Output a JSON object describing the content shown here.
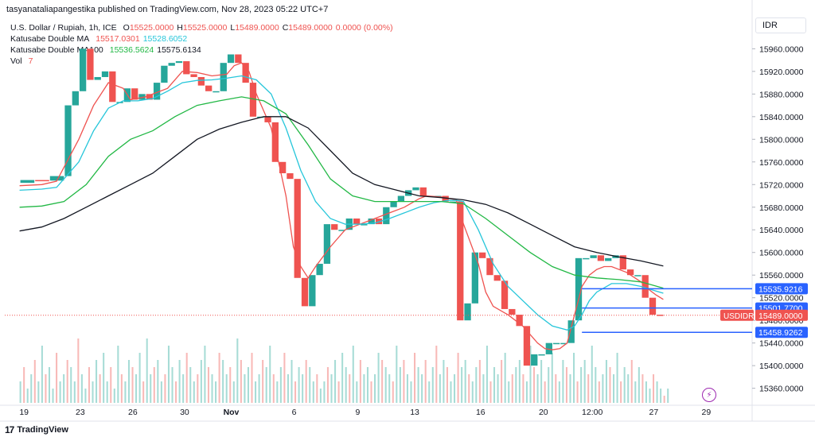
{
  "publisher": "tasyanataliapangestika published on TradingView.com, Nov 28, 2023 05:22 UTC+7",
  "legend": {
    "symbol": "U.S. Dollar / Rupiah, 1h, ICE",
    "o_label": "O",
    "o": "15525.0000",
    "h_label": "H",
    "h": "15525.0000",
    "l_label": "L",
    "l": "15489.0000",
    "c_label": "C",
    "c": "15489.0000",
    "change": "0.0000 (0.00%)",
    "ma1_name": "Katusabe Double MA",
    "ma1_a": "15517.0301",
    "ma1_b": "15528.6052",
    "ma2_name": "Katusabe Double MA100",
    "ma2_a": "15536.5624",
    "ma2_b": "15575.6134",
    "vol_name": "Vol",
    "vol": "7"
  },
  "currency": "IDR",
  "footer": {
    "brand": "TradingView",
    "logo": "17"
  },
  "colors": {
    "up": "#26a69a",
    "down": "#ef5350",
    "ma_fast": "#ef5350",
    "ma_mid": "#26c6da",
    "ma_green": "#22b845",
    "ma_long": "#131722",
    "marker": "#2962ff"
  },
  "chart_data": {
    "type": "line",
    "title": "U.S. Dollar / Rupiah, 1h, ICE",
    "ylim": [
      15330,
      15990
    ],
    "y_ticks": [
      "15960.0000",
      "15920.0000",
      "15880.0000",
      "15840.0000",
      "15800.0000",
      "15760.0000",
      "15720.0000",
      "15680.0000",
      "15640.0000",
      "15600.0000",
      "15560.0000",
      "15520.0000",
      "15480.0000",
      "15440.0000",
      "15400.0000",
      "15360.0000"
    ],
    "y_tick_values": [
      15960,
      15920,
      15880,
      15840,
      15800,
      15760,
      15720,
      15680,
      15640,
      15600,
      15560,
      15520,
      15480,
      15440,
      15400,
      15360
    ],
    "x_ticks": [
      "19",
      "23",
      "26",
      "30",
      "Nov",
      "6",
      "9",
      "13",
      "16",
      "20",
      "12:00",
      "27",
      "29"
    ],
    "x_tick_positions": [
      0.6,
      8.2,
      15.3,
      22.3,
      28.6,
      37.1,
      45.7,
      53.4,
      62.3,
      70.8,
      77.4,
      85.7,
      92.8
    ],
    "xlim": [
      -2,
      99
    ],
    "series": [
      {
        "name": "Price",
        "x": [
          0,
          2,
          4,
          6,
          7,
          8,
          9,
          10,
          11,
          12,
          13,
          14,
          15,
          16,
          17,
          18,
          19,
          20,
          21,
          22,
          23,
          24,
          25,
          26,
          27,
          28,
          29,
          30,
          31,
          32,
          33,
          34,
          35,
          36,
          37,
          38,
          39,
          40,
          41,
          42,
          43,
          44,
          45,
          46,
          47,
          48,
          49,
          50,
          51,
          52,
          53,
          54,
          55,
          56,
          57,
          58,
          59,
          60,
          61,
          62,
          63,
          64,
          65,
          66,
          67,
          68,
          69,
          70,
          71,
          72,
          73,
          74,
          75,
          76,
          77,
          78,
          79,
          80,
          81,
          82,
          83,
          84,
          85,
          86,
          87
        ],
        "values": [
          15723,
          15728,
          15727,
          15735,
          15860,
          15885,
          15960,
          15905,
          15910,
          15920,
          15866,
          15866,
          15890,
          15870,
          15880,
          15870,
          15900,
          15930,
          15935,
          15938,
          15915,
          15910,
          15895,
          15885,
          15885,
          15935,
          15950,
          15935,
          15900,
          15840,
          15840,
          15830,
          15760,
          15740,
          15730,
          15555,
          15505,
          15560,
          15580,
          15650,
          15640,
          15640,
          15660,
          15650,
          15650,
          15660,
          15650,
          15680,
          15690,
          15700,
          15710,
          15715,
          15700,
          15700,
          15700,
          15690,
          15690,
          15480,
          15510,
          15600,
          15590,
          15560,
          15550,
          15500,
          15490,
          15470,
          15400,
          15420,
          15420,
          15440,
          15440,
          15440,
          15480,
          15590,
          15590,
          15595,
          15585,
          15590,
          15595,
          15570,
          15560,
          15560,
          15520,
          15490,
          15489
        ]
      },
      {
        "name": "Katusabe Double MA 15517.0301",
        "x": [
          0,
          3,
          5,
          8,
          10,
          12,
          14,
          15,
          17,
          20,
          22,
          24,
          26,
          28,
          29,
          30,
          31,
          32,
          34,
          36,
          37,
          38,
          39,
          40,
          42,
          44,
          46,
          48,
          50,
          52,
          54,
          55,
          57,
          59,
          60,
          62,
          63,
          64,
          66,
          68,
          70,
          71,
          72,
          73,
          74,
          75,
          76,
          77,
          78,
          79,
          80,
          82,
          84,
          85,
          86,
          87
        ],
        "values": [
          15718,
          15720,
          15726,
          15800,
          15860,
          15900,
          15890,
          15870,
          15875,
          15890,
          15920,
          15918,
          15912,
          15915,
          15930,
          15935,
          15920,
          15880,
          15820,
          15700,
          15610,
          15575,
          15555,
          15575,
          15610,
          15640,
          15650,
          15660,
          15670,
          15680,
          15695,
          15700,
          15698,
          15693,
          15650,
          15580,
          15530,
          15505,
          15490,
          15470,
          15440,
          15430,
          15428,
          15430,
          15440,
          15490,
          15540,
          15560,
          15570,
          15575,
          15575,
          15565,
          15548,
          15535,
          15525,
          15517
        ]
      },
      {
        "name": "Katusabe Double MA 15528.6052",
        "x": [
          0,
          3,
          5,
          8,
          10,
          12,
          14,
          16,
          18,
          20,
          22,
          24,
          26,
          28,
          30,
          32,
          34,
          36,
          38,
          40,
          42,
          44,
          46,
          48,
          50,
          52,
          54,
          56,
          58,
          59,
          60,
          62,
          64,
          66,
          68,
          70,
          72,
          74,
          75,
          76,
          77,
          78,
          80,
          82,
          84,
          86,
          87
        ],
        "values": [
          15710,
          15712,
          15715,
          15760,
          15815,
          15855,
          15868,
          15868,
          15872,
          15885,
          15900,
          15904,
          15905,
          15908,
          15912,
          15905,
          15880,
          15820,
          15745,
          15690,
          15660,
          15650,
          15650,
          15652,
          15660,
          15670,
          15680,
          15688,
          15692,
          15692,
          15690,
          15640,
          15580,
          15540,
          15515,
          15490,
          15470,
          15463,
          15470,
          15490,
          15515,
          15530,
          15545,
          15545,
          15540,
          15532,
          15528
        ]
      },
      {
        "name": "Katusabe Double MA100 15536.5624",
        "x": [
          0,
          3,
          6,
          9,
          12,
          15,
          18,
          21,
          24,
          27,
          30,
          33,
          36,
          39,
          42,
          45,
          48,
          51,
          54,
          57,
          60,
          63,
          66,
          69,
          72,
          75,
          78,
          81,
          84,
          87
        ],
        "values": [
          15680,
          15682,
          15690,
          15720,
          15770,
          15800,
          15815,
          15840,
          15860,
          15868,
          15875,
          15868,
          15845,
          15790,
          15730,
          15700,
          15690,
          15690,
          15690,
          15690,
          15686,
          15660,
          15630,
          15600,
          15575,
          15560,
          15555,
          15552,
          15548,
          15537
        ]
      },
      {
        "name": "Katusabe Double MA100 15575.6134",
        "x": [
          0,
          3,
          6,
          9,
          12,
          15,
          18,
          21,
          24,
          27,
          30,
          33,
          36,
          39,
          42,
          45,
          48,
          51,
          54,
          57,
          60,
          63,
          66,
          69,
          72,
          75,
          78,
          81,
          84,
          87
        ],
        "values": [
          15638,
          15645,
          15660,
          15680,
          15700,
          15720,
          15740,
          15770,
          15800,
          15818,
          15830,
          15840,
          15840,
          15820,
          15780,
          15740,
          15720,
          15710,
          15700,
          15697,
          15693,
          15685,
          15670,
          15650,
          15630,
          15610,
          15600,
          15592,
          15585,
          15576
        ]
      }
    ],
    "price_labels": [
      {
        "label": "15535.9216",
        "value": 15535.9216,
        "kind": "marker"
      },
      {
        "label": "15501.7700",
        "value": 15501.77,
        "kind": "marker"
      },
      {
        "label": "15489.0000",
        "value": 15489.0,
        "kind": "last",
        "tag": "USDIDR"
      },
      {
        "label": "15458.9262",
        "value": 15458.9262,
        "kind": "marker"
      }
    ],
    "volume": [
      3,
      5,
      2,
      4,
      6,
      3,
      8,
      4,
      5,
      2,
      7,
      3,
      4,
      6,
      5,
      3,
      9,
      4,
      2,
      5,
      3,
      6,
      4,
      7,
      3,
      5,
      2,
      8,
      4,
      3,
      6,
      5,
      4,
      7,
      3,
      9,
      4,
      5,
      6,
      3,
      4,
      8,
      5,
      3,
      6,
      4,
      7,
      5,
      3,
      4,
      6,
      8,
      5,
      4,
      3,
      7,
      6,
      4,
      5,
      3,
      9,
      6,
      4,
      5,
      7,
      3,
      4,
      6,
      5,
      8,
      4,
      3,
      5,
      7,
      4,
      6,
      3,
      5,
      4,
      6,
      5,
      3,
      4,
      2,
      3,
      5,
      4,
      6,
      3,
      7,
      5,
      4,
      8,
      3,
      6,
      4,
      5,
      3,
      4,
      7,
      6,
      5,
      4,
      3,
      8,
      5,
      6,
      4,
      3,
      7,
      5,
      4,
      6,
      3,
      5,
      8,
      4,
      6,
      5,
      3,
      4,
      7,
      5,
      6,
      4,
      3,
      5,
      6,
      4,
      8,
      3,
      5,
      4,
      6,
      7,
      3,
      4,
      5,
      6,
      4,
      3,
      8,
      5,
      4,
      6,
      3,
      5,
      7,
      4,
      3,
      6,
      5,
      4,
      7,
      3,
      5,
      6,
      4,
      8,
      5,
      3,
      4,
      6,
      5,
      4,
      7,
      3,
      5,
      4,
      6,
      3,
      5,
      4,
      3,
      2,
      4,
      3,
      2,
      1,
      2
    ]
  }
}
